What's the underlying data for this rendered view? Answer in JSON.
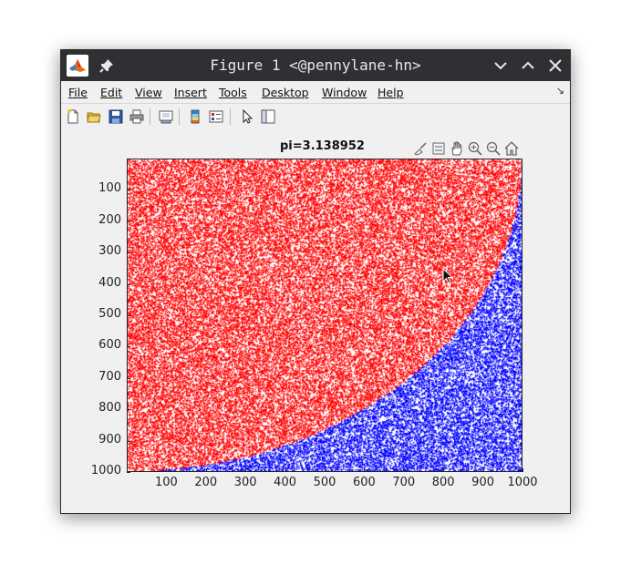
{
  "window": {
    "title": "Figure 1 <@pennylane-hn>",
    "icons": [
      "matlab-icon",
      "pin-icon",
      "minimize-icon",
      "maximize-icon",
      "close-icon"
    ]
  },
  "menubar": {
    "items": [
      {
        "label": "File"
      },
      {
        "label": "Edit"
      },
      {
        "label": "View"
      },
      {
        "label": "Insert"
      },
      {
        "label": "Tools"
      },
      {
        "label": "Desktop"
      },
      {
        "label": "Window"
      },
      {
        "label": "Help"
      }
    ]
  },
  "toolbar": {
    "icons": [
      "new-figure-icon",
      "open-file-icon",
      "save-icon",
      "print-icon",
      "link-plot-icon",
      "insert-colorbar-icon",
      "insert-legend-icon",
      "edit-plot-icon",
      "property-inspector-icon"
    ]
  },
  "axes_toolbar": {
    "icons": [
      "brush-icon",
      "data-tips-icon",
      "pan-icon",
      "zoom-in-icon",
      "zoom-out-icon",
      "home-icon"
    ]
  },
  "chart_data": {
    "type": "scatter",
    "title": "pi=3.138952",
    "xlabel": "",
    "ylabel": "",
    "xlim": [
      0,
      1000
    ],
    "ylim": [
      1000,
      0
    ],
    "y_reversed": true,
    "xticks": [
      "100",
      "200",
      "300",
      "400",
      "500",
      "600",
      "700",
      "800",
      "900",
      "1000"
    ],
    "yticks": [
      "100",
      "200",
      "300",
      "400",
      "500",
      "600",
      "700",
      "800",
      "900",
      "1000"
    ],
    "grid": false,
    "boundary": {
      "center": [
        0,
        0
      ],
      "radius": 1000,
      "shape": "quarter-circle"
    },
    "series": [
      {
        "color": "#ff0000",
        "region": "inside"
      },
      {
        "color": "#0000ff",
        "region": "outside"
      }
    ],
    "background_color": "#ffffff"
  }
}
